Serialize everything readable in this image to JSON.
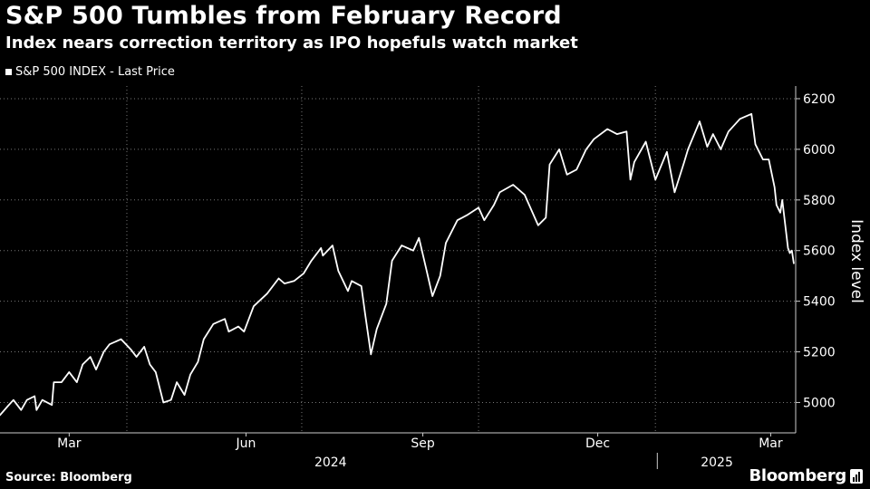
{
  "header": {
    "title": "S&P 500 Tumbles from February Record",
    "subtitle": "Index nears correction territory as IPO hopefuls watch market"
  },
  "legend": {
    "label": "S&P 500 INDEX - Last Price"
  },
  "footer": {
    "source": "Source: Bloomberg",
    "brand": "Bloomberg"
  },
  "colors": {
    "background": "#000000",
    "line": "#ffffff",
    "grid": "#777777"
  },
  "chart_data": {
    "type": "line",
    "title": "S&P 500 Tumbles from February Record",
    "subtitle": "Index nears correction territory as IPO hopefuls watch market",
    "ylabel": "Index level",
    "y_axis_position": "right",
    "ylim": [
      4880,
      6250
    ],
    "yticks": [
      5000,
      5200,
      5400,
      5600,
      5800,
      6000,
      6200
    ],
    "xlim": [
      "2024-01-25",
      "2025-03-14"
    ],
    "x_tick_labels": [
      {
        "label": "Mar",
        "date": "2024-03-01"
      },
      {
        "label": "Jun",
        "date": "2024-06-01"
      },
      {
        "label": "Sep",
        "date": "2024-09-01"
      },
      {
        "label": "Dec",
        "date": "2024-12-01"
      },
      {
        "label": "Mar",
        "date": "2025-03-01"
      }
    ],
    "year_labels": [
      {
        "label": "2024",
        "date": "2024-07-15"
      },
      {
        "label": "2025",
        "date": "2025-02-01"
      }
    ],
    "year_separator_date": "2025-01-01",
    "grid": true,
    "legend_position": "top-left",
    "series": [
      {
        "name": "S&P 500 INDEX - Last Price",
        "x": [
          "2024-01-25",
          "2024-01-29",
          "2024-02-01",
          "2024-02-05",
          "2024-02-08",
          "2024-02-12",
          "2024-02-13",
          "2024-02-16",
          "2024-02-21",
          "2024-02-22",
          "2024-02-26",
          "2024-03-01",
          "2024-03-05",
          "2024-03-08",
          "2024-03-12",
          "2024-03-15",
          "2024-03-19",
          "2024-03-22",
          "2024-03-28",
          "2024-04-02",
          "2024-04-05",
          "2024-04-09",
          "2024-04-12",
          "2024-04-15",
          "2024-04-19",
          "2024-04-23",
          "2024-04-26",
          "2024-04-30",
          "2024-05-03",
          "2024-05-07",
          "2024-05-10",
          "2024-05-15",
          "2024-05-21",
          "2024-05-23",
          "2024-05-28",
          "2024-05-31",
          "2024-06-05",
          "2024-06-12",
          "2024-06-18",
          "2024-06-21",
          "2024-06-26",
          "2024-07-01",
          "2024-07-05",
          "2024-07-10",
          "2024-07-11",
          "2024-07-16",
          "2024-07-19",
          "2024-07-24",
          "2024-07-26",
          "2024-07-31",
          "2024-08-02",
          "2024-08-05",
          "2024-08-08",
          "2024-08-13",
          "2024-08-16",
          "2024-08-21",
          "2024-08-27",
          "2024-08-30",
          "2024-09-03",
          "2024-09-06",
          "2024-09-10",
          "2024-09-13",
          "2024-09-19",
          "2024-09-24",
          "2024-09-30",
          "2024-10-03",
          "2024-10-08",
          "2024-10-11",
          "2024-10-18",
          "2024-10-24",
          "2024-10-31",
          "2024-11-04",
          "2024-11-06",
          "2024-11-11",
          "2024-11-15",
          "2024-11-20",
          "2024-11-25",
          "2024-11-29",
          "2024-12-06",
          "2024-12-11",
          "2024-12-16",
          "2024-12-18",
          "2024-12-20",
          "2024-12-26",
          "2024-12-31",
          "2025-01-06",
          "2025-01-10",
          "2025-01-15",
          "2025-01-17",
          "2025-01-23",
          "2025-01-27",
          "2025-01-30",
          "2025-02-03",
          "2025-02-07",
          "2025-02-13",
          "2025-02-19",
          "2025-02-21",
          "2025-02-25",
          "2025-02-28",
          "2025-03-03",
          "2025-03-04",
          "2025-03-06",
          "2025-03-07",
          "2025-03-10",
          "2025-03-11",
          "2025-03-12",
          "2025-03-13"
        ],
        "y": [
          4950,
          4985,
          5010,
          4970,
          5010,
          5025,
          4970,
          5010,
          4990,
          5080,
          5080,
          5120,
          5080,
          5150,
          5180,
          5130,
          5200,
          5230,
          5250,
          5210,
          5180,
          5220,
          5150,
          5120,
          5000,
          5010,
          5080,
          5030,
          5110,
          5160,
          5250,
          5310,
          5330,
          5280,
          5300,
          5280,
          5380,
          5430,
          5490,
          5470,
          5480,
          5510,
          5560,
          5610,
          5580,
          5620,
          5520,
          5440,
          5480,
          5460,
          5350,
          5190,
          5290,
          5390,
          5560,
          5620,
          5600,
          5650,
          5520,
          5420,
          5500,
          5630,
          5720,
          5740,
          5770,
          5720,
          5780,
          5830,
          5860,
          5820,
          5700,
          5730,
          5940,
          6000,
          5900,
          5920,
          6000,
          6040,
          6080,
          6060,
          6070,
          5880,
          5950,
          6030,
          5880,
          5990,
          5830,
          5950,
          6000,
          6110,
          6010,
          6060,
          6000,
          6070,
          6120,
          6140,
          6020,
          5960,
          5960,
          5850,
          5780,
          5750,
          5800,
          5610,
          5590,
          5600,
          5550
        ]
      }
    ]
  }
}
